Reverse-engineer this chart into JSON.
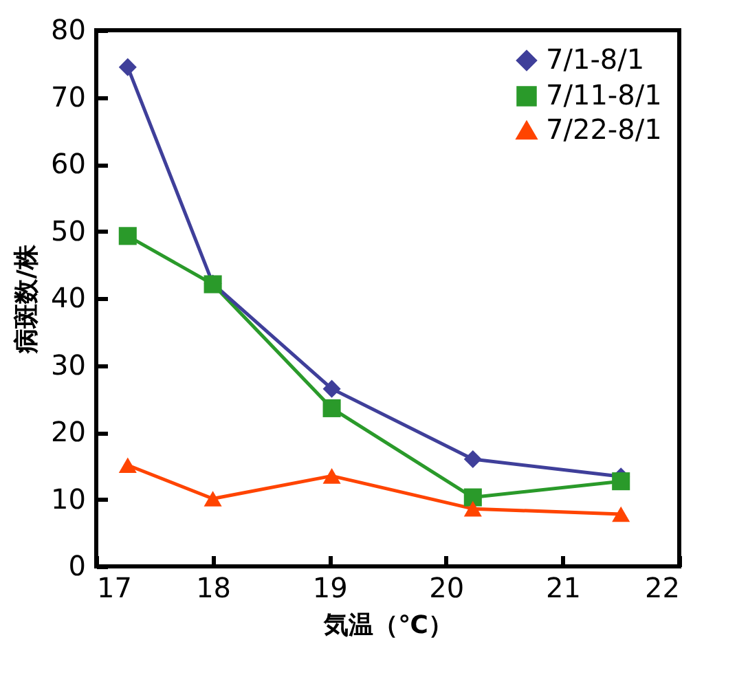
{
  "chart_data": {
    "type": "line",
    "xlabel": "気温（℃）",
    "ylabel": "病斑数/株",
    "x": [
      17.27,
      18.0,
      19.02,
      20.23,
      21.5
    ],
    "series": [
      {
        "name": "7/1-8/1",
        "color": "#3f3f9a",
        "marker": "diamond",
        "values": [
          74.5,
          42.2,
          26.5,
          16.0,
          13.4
        ]
      },
      {
        "name": "7/11-8/1",
        "color": "#2a9a2a",
        "marker": "square",
        "values": [
          49.3,
          42.1,
          23.6,
          10.3,
          12.7
        ]
      },
      {
        "name": "7/22-8/1",
        "color": "#ff4400",
        "marker": "triangle",
        "values": [
          15.1,
          10.1,
          13.5,
          8.6,
          7.8
        ]
      }
    ],
    "xlim": [
      17,
      22
    ],
    "xticks": [
      17,
      18,
      19,
      20,
      21,
      22
    ],
    "ylim": [
      0,
      80
    ],
    "yticks": [
      0,
      10,
      20,
      30,
      40,
      50,
      60,
      70,
      80
    ],
    "grid": false,
    "legend": "top right"
  }
}
